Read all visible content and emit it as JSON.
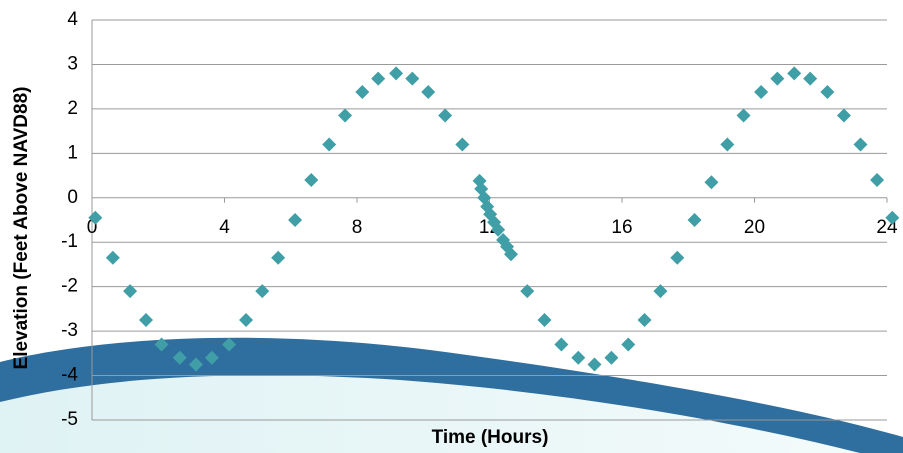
{
  "chart_data": {
    "type": "scatter",
    "x_label": "Time (Hours)",
    "y_label": "Elevation (Feet Above NAVD88)",
    "x": [
      0.1,
      0.63,
      1.15,
      1.63,
      2.1,
      2.65,
      3.14,
      3.62,
      4.14,
      4.65,
      5.14,
      5.62,
      6.13,
      6.62,
      7.16,
      7.64,
      8.16,
      8.64,
      9.18,
      9.67,
      10.15,
      10.66,
      11.18,
      11.7,
      11.75,
      11.84,
      11.93,
      12.02,
      12.14,
      12.26,
      12.41,
      12.53,
      12.65,
      13.14,
      13.66,
      14.17,
      14.68,
      15.17,
      15.68,
      16.19,
      16.68,
      17.16,
      17.67,
      18.19,
      18.7,
      19.18,
      19.67,
      20.2,
      20.69,
      21.2,
      21.68,
      22.2,
      22.7,
      23.2,
      23.7,
      24.16
    ],
    "values": [
      -0.45,
      -1.35,
      -2.1,
      -2.75,
      -3.3,
      -3.6,
      -3.75,
      -3.6,
      -3.3,
      -2.75,
      -2.1,
      -1.35,
      -0.5,
      0.4,
      1.2,
      1.85,
      2.38,
      2.68,
      2.8,
      2.68,
      2.38,
      1.85,
      1.2,
      0.38,
      0.2,
      0,
      -0.2,
      -0.37,
      -0.55,
      -0.72,
      -0.95,
      -1.1,
      -1.27,
      -2.1,
      -2.75,
      -3.3,
      -3.6,
      -3.75,
      -3.6,
      -3.3,
      -2.75,
      -2.1,
      -1.35,
      -0.5,
      0.35,
      1.2,
      1.85,
      2.38,
      2.68,
      2.8,
      2.68,
      2.38,
      1.85,
      1.2,
      0.4,
      -0.45
    ],
    "color": "#3f9ea6",
    "xlim": [
      0,
      24
    ],
    "xticks": [
      0,
      4,
      8,
      12,
      16,
      20,
      24
    ],
    "ylim": [
      -5,
      4
    ],
    "yticks": [
      -5,
      -4,
      -3,
      -2,
      -1,
      0,
      1,
      2,
      3,
      4
    ],
    "grid": true
  }
}
